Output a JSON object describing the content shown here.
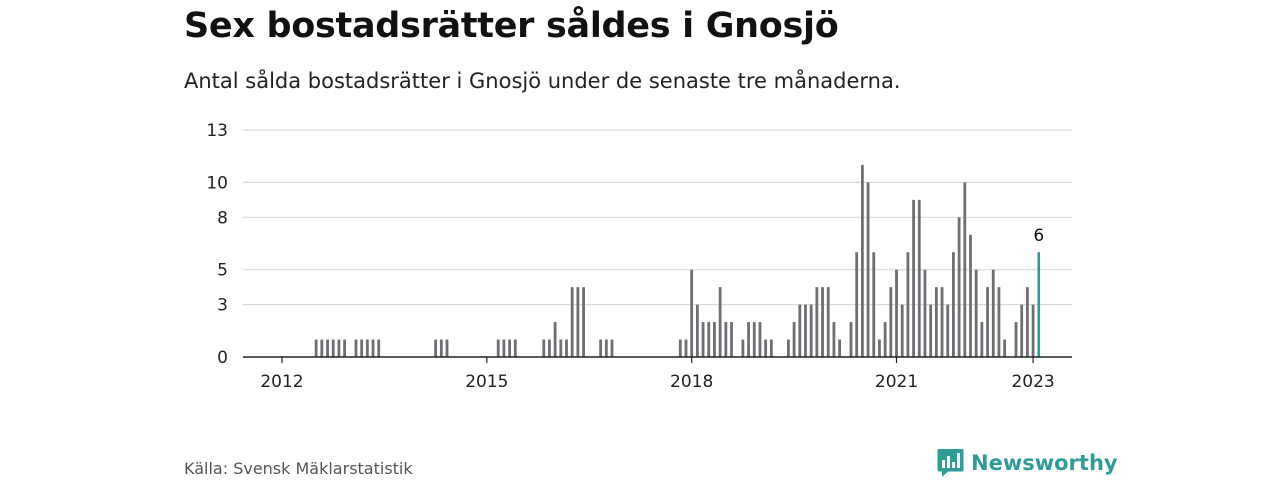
{
  "title": "Sex bostadsrätter såldes i Gnosjö",
  "subtitle": "Antal sålda bostadsrätter i Gnosjö under de senaste tre månaderna.",
  "source": "Källa: Svensk Mäklarstatistik",
  "brand": {
    "name": "Newsworthy",
    "icon": "newsworthy-logo-icon"
  },
  "colors": {
    "bar": "#6e6e73",
    "highlight": "#2a9c9c",
    "grid": "#d9d9d9",
    "axis": "#222222",
    "brand": "#2f9c9a"
  },
  "chart_data": {
    "type": "bar",
    "title": "Sex bostadsrätter såldes i Gnosjö",
    "subtitle": "Antal sålda bostadsrätter i Gnosjö under de senaste tre månaderna.",
    "xlabel": "",
    "ylabel": "",
    "ylim": [
      0,
      13
    ],
    "yticks": [
      0,
      3,
      5,
      8,
      10,
      13
    ],
    "ytick_labels": [
      "0",
      "3",
      "5",
      "8",
      "10",
      "13"
    ],
    "xticks": [
      "2012-01",
      "2015-01",
      "2018-01",
      "2021-01",
      "2023-01"
    ],
    "xtick_labels": [
      "2012",
      "2015",
      "2018",
      "2021",
      "2023"
    ],
    "grid": true,
    "series": [
      {
        "values": [
          {
            "x": "2012-07",
            "y": 1
          },
          {
            "x": "2012-08",
            "y": 1
          },
          {
            "x": "2012-09",
            "y": 1
          },
          {
            "x": "2012-10",
            "y": 1
          },
          {
            "x": "2012-11",
            "y": 1
          },
          {
            "x": "2012-12",
            "y": 1
          },
          {
            "x": "2013-02",
            "y": 1
          },
          {
            "x": "2013-03",
            "y": 1
          },
          {
            "x": "2013-04",
            "y": 1
          },
          {
            "x": "2013-05",
            "y": 1
          },
          {
            "x": "2013-06",
            "y": 1
          },
          {
            "x": "2014-04",
            "y": 1
          },
          {
            "x": "2014-05",
            "y": 1
          },
          {
            "x": "2014-06",
            "y": 1
          },
          {
            "x": "2015-03",
            "y": 1
          },
          {
            "x": "2015-04",
            "y": 1
          },
          {
            "x": "2015-05",
            "y": 1
          },
          {
            "x": "2015-06",
            "y": 1
          },
          {
            "x": "2015-11",
            "y": 1
          },
          {
            "x": "2015-12",
            "y": 1
          },
          {
            "x": "2016-01",
            "y": 2
          },
          {
            "x": "2016-02",
            "y": 1
          },
          {
            "x": "2016-03",
            "y": 1
          },
          {
            "x": "2016-04",
            "y": 4
          },
          {
            "x": "2016-05",
            "y": 4
          },
          {
            "x": "2016-06",
            "y": 4
          },
          {
            "x": "2016-09",
            "y": 1
          },
          {
            "x": "2016-10",
            "y": 1
          },
          {
            "x": "2016-11",
            "y": 1
          },
          {
            "x": "2017-11",
            "y": 1
          },
          {
            "x": "2017-12",
            "y": 1
          },
          {
            "x": "2018-01",
            "y": 5
          },
          {
            "x": "2018-02",
            "y": 3
          },
          {
            "x": "2018-03",
            "y": 2
          },
          {
            "x": "2018-04",
            "y": 2
          },
          {
            "x": "2018-05",
            "y": 2
          },
          {
            "x": "2018-06",
            "y": 4
          },
          {
            "x": "2018-07",
            "y": 2
          },
          {
            "x": "2018-08",
            "y": 2
          },
          {
            "x": "2018-10",
            "y": 1
          },
          {
            "x": "2018-11",
            "y": 2
          },
          {
            "x": "2018-12",
            "y": 2
          },
          {
            "x": "2019-01",
            "y": 2
          },
          {
            "x": "2019-02",
            "y": 1
          },
          {
            "x": "2019-03",
            "y": 1
          },
          {
            "x": "2019-06",
            "y": 1
          },
          {
            "x": "2019-07",
            "y": 2
          },
          {
            "x": "2019-08",
            "y": 3
          },
          {
            "x": "2019-09",
            "y": 3
          },
          {
            "x": "2019-10",
            "y": 3
          },
          {
            "x": "2019-11",
            "y": 4
          },
          {
            "x": "2019-12",
            "y": 4
          },
          {
            "x": "2020-01",
            "y": 4
          },
          {
            "x": "2020-02",
            "y": 2
          },
          {
            "x": "2020-03",
            "y": 1
          },
          {
            "x": "2020-05",
            "y": 2
          },
          {
            "x": "2020-06",
            "y": 6
          },
          {
            "x": "2020-07",
            "y": 11
          },
          {
            "x": "2020-08",
            "y": 10
          },
          {
            "x": "2020-09",
            "y": 6
          },
          {
            "x": "2020-10",
            "y": 1
          },
          {
            "x": "2020-11",
            "y": 2
          },
          {
            "x": "2020-12",
            "y": 4
          },
          {
            "x": "2021-01",
            "y": 5
          },
          {
            "x": "2021-02",
            "y": 3
          },
          {
            "x": "2021-03",
            "y": 6
          },
          {
            "x": "2021-04",
            "y": 9
          },
          {
            "x": "2021-05",
            "y": 9
          },
          {
            "x": "2021-06",
            "y": 5
          },
          {
            "x": "2021-07",
            "y": 3
          },
          {
            "x": "2021-08",
            "y": 4
          },
          {
            "x": "2021-09",
            "y": 4
          },
          {
            "x": "2021-10",
            "y": 3
          },
          {
            "x": "2021-11",
            "y": 6
          },
          {
            "x": "2021-12",
            "y": 8
          },
          {
            "x": "2022-01",
            "y": 10
          },
          {
            "x": "2022-02",
            "y": 7
          },
          {
            "x": "2022-03",
            "y": 5
          },
          {
            "x": "2022-04",
            "y": 2
          },
          {
            "x": "2022-05",
            "y": 4
          },
          {
            "x": "2022-06",
            "y": 5
          },
          {
            "x": "2022-07",
            "y": 4
          },
          {
            "x": "2022-08",
            "y": 1
          },
          {
            "x": "2022-10",
            "y": 2
          },
          {
            "x": "2022-11",
            "y": 3
          },
          {
            "x": "2022-12",
            "y": 4
          },
          {
            "x": "2023-01",
            "y": 3
          },
          {
            "x": "2023-02",
            "y": 6
          }
        ]
      }
    ],
    "highlight": {
      "x": "2023-02",
      "y": 6,
      "label": "6"
    }
  }
}
